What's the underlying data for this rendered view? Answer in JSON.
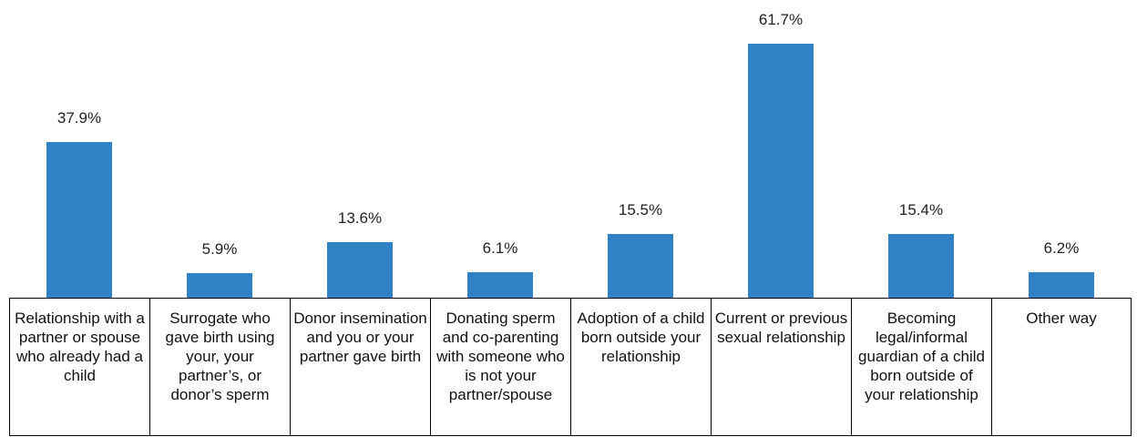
{
  "chart_data": {
    "type": "bar",
    "categories": [
      "Relationship with a partner or spouse who already had a child",
      "Surrogate who gave birth using your, your partner’s, or donor’s sperm",
      "Donor insemination and you or your partner gave birth",
      "Donating sperm and co-parenting with someone who is not your partner/spouse",
      "Adoption of a child born outside your relationship",
      "Current or previous sexual relationship",
      "Becoming legal/informal guardian of a child born outside of your relationship",
      "Other way"
    ],
    "values": [
      37.9,
      5.9,
      13.6,
      6.1,
      15.5,
      61.7,
      15.4,
      6.2
    ],
    "value_labels": [
      "37.9%",
      "5.9%",
      "13.6%",
      "6.1%",
      "15.5%",
      "61.7%",
      "15.4%",
      "6.2%"
    ],
    "color": "#3182c4"
  }
}
